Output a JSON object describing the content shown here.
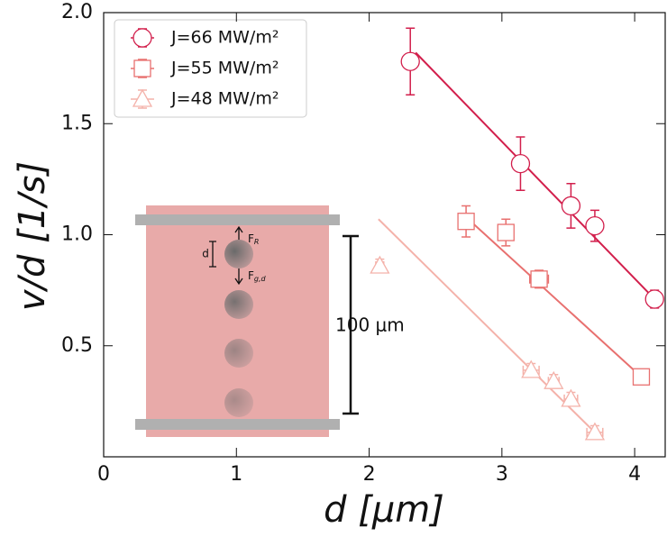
{
  "chart_data": {
    "type": "scatter",
    "x_label": "d [μm]",
    "y_label": "v/d  [1/s]",
    "xlim": [
      0,
      4.23
    ],
    "ylim": [
      0,
      2
    ],
    "xticks": [
      0,
      1,
      2,
      3,
      4
    ],
    "yticks": [
      0.5,
      {
        "value": 1,
        "label": "1.0"
      },
      1.5,
      {
        "value": 2,
        "label": "2.0"
      }
    ],
    "legend": "upper left",
    "series": [
      {
        "name": "J=66 MW/m²",
        "color": "#d21f4c",
        "marker": "circle",
        "x": [
          2.31,
          3.14,
          3.52,
          3.7,
          4.15
        ],
        "values": [
          1.78,
          1.32,
          1.13,
          1.04,
          0.71
        ],
        "xerr": [
          0.03,
          0.05,
          0.05,
          0.03,
          0.05
        ],
        "yerr": [
          0.15,
          0.12,
          0.1,
          0.07,
          0.04
        ],
        "fit_x": [
          2.35,
          4.15
        ],
        "fit_y": [
          1.82,
          0.71
        ]
      },
      {
        "name": "J=55 MW/m²",
        "color": "#e8706f",
        "marker": "square",
        "x": [
          2.73,
          3.03,
          3.28,
          4.05
        ],
        "values": [
          1.06,
          1.01,
          0.8,
          0.36
        ],
        "xerr": [
          0.04,
          0.05,
          0.07,
          0.05
        ],
        "yerr": [
          0.07,
          0.06,
          0.04,
          0.03
        ],
        "fit_x": [
          2.71,
          4.05
        ],
        "fit_y": [
          1.09,
          0.36
        ]
      },
      {
        "name": "J=48 MW/m²",
        "color": "#f4b2aa",
        "marker": "triangle",
        "x": [
          2.08,
          3.22,
          3.39,
          3.52,
          3.7
        ],
        "values": [
          0.86,
          0.39,
          0.34,
          0.26,
          0.11
        ],
        "xerr": [
          0.03,
          0.06,
          0.04,
          0.05,
          0.06
        ],
        "yerr": [
          0.03,
          0.03,
          0.03,
          0.03,
          0.03
        ],
        "fit_x": [
          2.07,
          3.7
        ],
        "fit_y": [
          1.07,
          0.11
        ]
      }
    ]
  },
  "inset": {
    "scale_label": "100 μm",
    "force_up": "F",
    "force_up_sub": "R",
    "force_down": "F",
    "force_down_sub": "g,d",
    "size_label": "d"
  }
}
